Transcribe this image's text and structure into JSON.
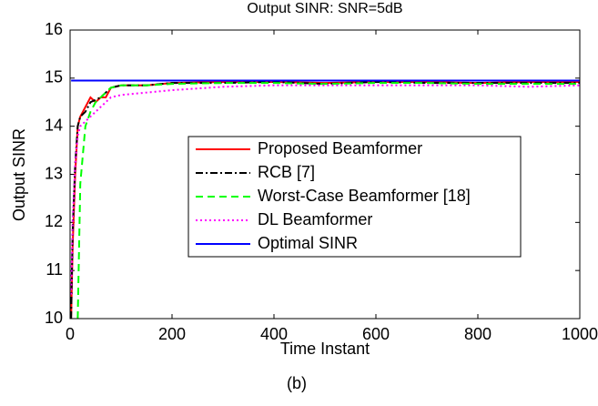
{
  "chart_data": {
    "type": "line",
    "title": "Output SINR: SNR=5dB",
    "subtitle": "(b)",
    "x_label": "Time Instant",
    "y_label": "Output SINR",
    "x": [
      2,
      5,
      10,
      15,
      20,
      30,
      40,
      50,
      60,
      70,
      80,
      100,
      150,
      200,
      300,
      400,
      500,
      600,
      700,
      800,
      900,
      1000
    ],
    "series": [
      {
        "name": "Proposed Beamformer",
        "color": "#ff0000",
        "dash": "solid",
        "values": [
          10,
          11.5,
          13,
          14,
          14.2,
          14.4,
          14.6,
          14.5,
          14.6,
          14.6,
          14.8,
          14.85,
          14.85,
          14.9,
          14.92,
          14.92,
          14.9,
          14.92,
          14.92,
          14.9,
          14.92,
          14.92
        ]
      },
      {
        "name": "RCB [7]",
        "color": "#000000",
        "dash": "dashdot",
        "values": [
          10,
          11.8,
          13.2,
          14,
          14.2,
          14.3,
          14.5,
          14.55,
          14.6,
          14.7,
          14.8,
          14.85,
          14.85,
          14.9,
          14.9,
          14.92,
          14.88,
          14.92,
          14.9,
          14.9,
          14.9,
          14.9
        ]
      },
      {
        "name": "Worst-Case Beamformer [18]",
        "color": "#00ff00",
        "dash": "dashed",
        "values": [
          null,
          null,
          null,
          10,
          12.8,
          14.0,
          14.3,
          14.5,
          14.6,
          14.7,
          14.8,
          14.85,
          14.85,
          14.88,
          14.9,
          14.9,
          14.88,
          14.9,
          14.9,
          14.88,
          14.88,
          14.88
        ]
      },
      {
        "name": "DL Beamformer",
        "color": "#ff00ff",
        "dash": "dotted",
        "values": [
          10.5,
          12,
          13.2,
          13.8,
          14,
          14.1,
          14.2,
          14.3,
          14.4,
          14.5,
          14.6,
          14.65,
          14.7,
          14.75,
          14.82,
          14.85,
          14.85,
          14.85,
          14.85,
          14.85,
          14.82,
          14.85
        ]
      },
      {
        "name": "Optimal SINR",
        "color": "#0000ff",
        "dash": "solid",
        "values": [
          14.95,
          14.95,
          14.95,
          14.95,
          14.95,
          14.95,
          14.95,
          14.95,
          14.95,
          14.95,
          14.95,
          14.95,
          14.95,
          14.95,
          14.95,
          14.95,
          14.95,
          14.95,
          14.95,
          14.95,
          14.95,
          14.95
        ]
      }
    ],
    "xlim": [
      0,
      1000
    ],
    "xticks": [
      0,
      200,
      400,
      600,
      800,
      1000
    ],
    "ylim": [
      10,
      16
    ],
    "yticks": [
      10,
      11,
      12,
      13,
      14,
      15,
      16
    ],
    "grid": false,
    "legend": "center right"
  }
}
